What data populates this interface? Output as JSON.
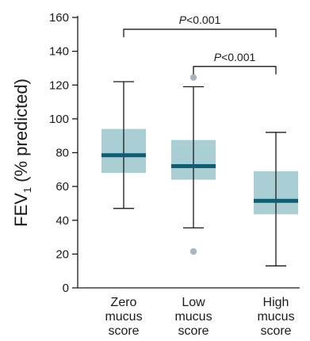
{
  "chart_data": {
    "type": "box",
    "ylabel_parts": [
      "FEV",
      "1",
      " (% predicted)"
    ],
    "ylim": [
      0,
      160
    ],
    "yticks": [
      0,
      20,
      40,
      60,
      80,
      100,
      120,
      140,
      160
    ],
    "colors": {
      "box": "#a9cfd4",
      "median": "#0e5f75",
      "whisker": "#1a1a1a",
      "outlier": "#a3b7bf"
    },
    "groups": [
      {
        "label_lines": [
          "Zero",
          "mucus",
          "score"
        ],
        "whisker_low": 47,
        "q1": 68,
        "median": 78.5,
        "q3": 94,
        "whisker_high": 122,
        "outliers": []
      },
      {
        "label_lines": [
          "Low",
          "mucus",
          "score"
        ],
        "whisker_low": 35.5,
        "q1": 64,
        "median": 72,
        "q3": 87.5,
        "whisker_high": 119,
        "outliers": [
          124.5,
          21.5
        ]
      },
      {
        "label_lines": [
          "High",
          "mucus",
          "score"
        ],
        "whisker_low": 13,
        "q1": 43.5,
        "median": 51.5,
        "q3": 69,
        "whisker_high": 92,
        "outliers": []
      }
    ],
    "significance": [
      {
        "from": 0,
        "to": 2,
        "level": 153,
        "p_letter": "P",
        "p_text": "<0.001"
      },
      {
        "from": 1,
        "to": 2,
        "level": 131,
        "p_letter": "P",
        "p_text": "<0.001"
      }
    ]
  }
}
